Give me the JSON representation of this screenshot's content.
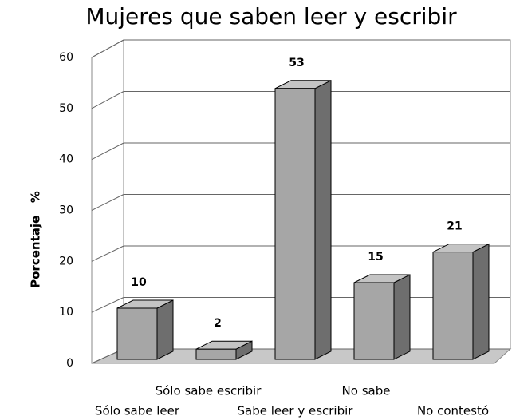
{
  "chart_data": {
    "type": "bar3d",
    "title": "Mujeres que saben leer y escribir",
    "y_axis_label": "Porcentaje   %",
    "categories": [
      "Sólo sabe leer",
      "Sólo sabe escribir",
      "Sabe leer y escribir",
      "No sabe",
      "No contestó"
    ],
    "values": [
      10,
      2,
      53,
      15,
      21
    ],
    "color": "#a6a6a6",
    "ylim": [
      0,
      60
    ],
    "yticks": [
      0,
      10,
      20,
      30,
      40,
      50,
      60
    ],
    "grid": true
  }
}
